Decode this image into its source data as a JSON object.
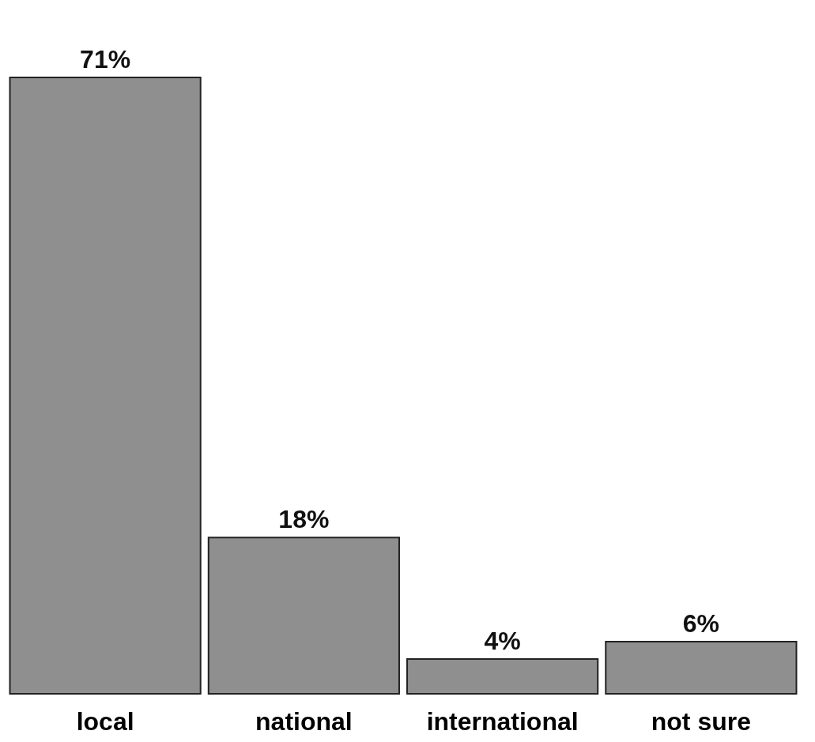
{
  "chart_data": {
    "type": "bar",
    "categories": [
      "local",
      "national",
      "international",
      "not sure"
    ],
    "values": [
      71,
      18,
      4,
      6
    ],
    "value_labels": [
      "71%",
      "18%",
      "4%",
      "6%"
    ],
    "color": "#8f8f8f"
  }
}
